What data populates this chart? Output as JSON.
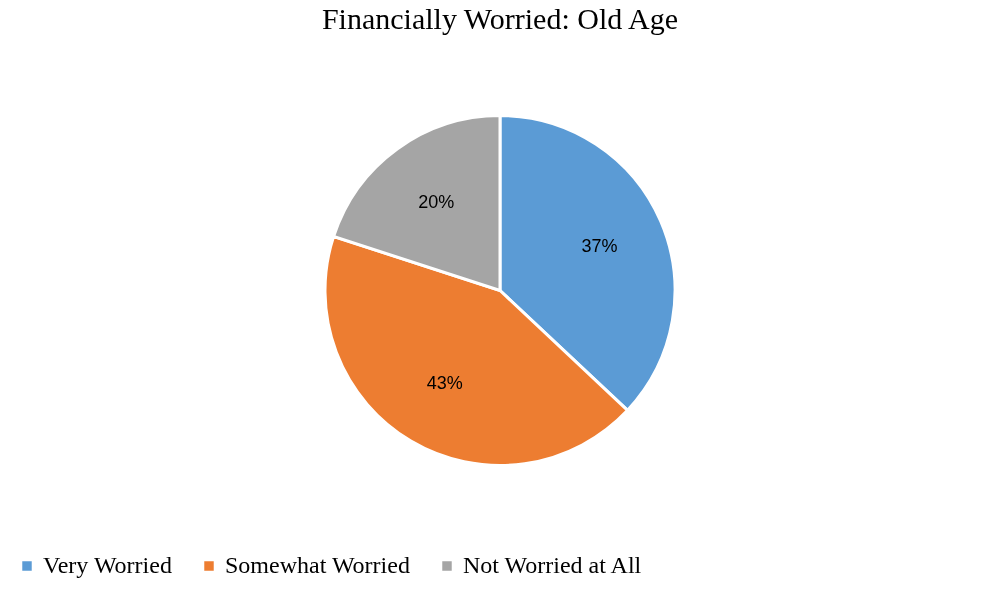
{
  "chart_data": {
    "type": "pie",
    "title": "Financially Worried: Old Age",
    "categories": [
      "Very Worried",
      "Somewhat Worried",
      "Not Worried at All"
    ],
    "values": [
      37,
      43,
      20
    ],
    "colors": [
      "#5b9bd5",
      "#ed7d31",
      "#a5a5a5"
    ],
    "value_labels": [
      "37%",
      "43%",
      "20%"
    ],
    "legend": "bottom"
  }
}
